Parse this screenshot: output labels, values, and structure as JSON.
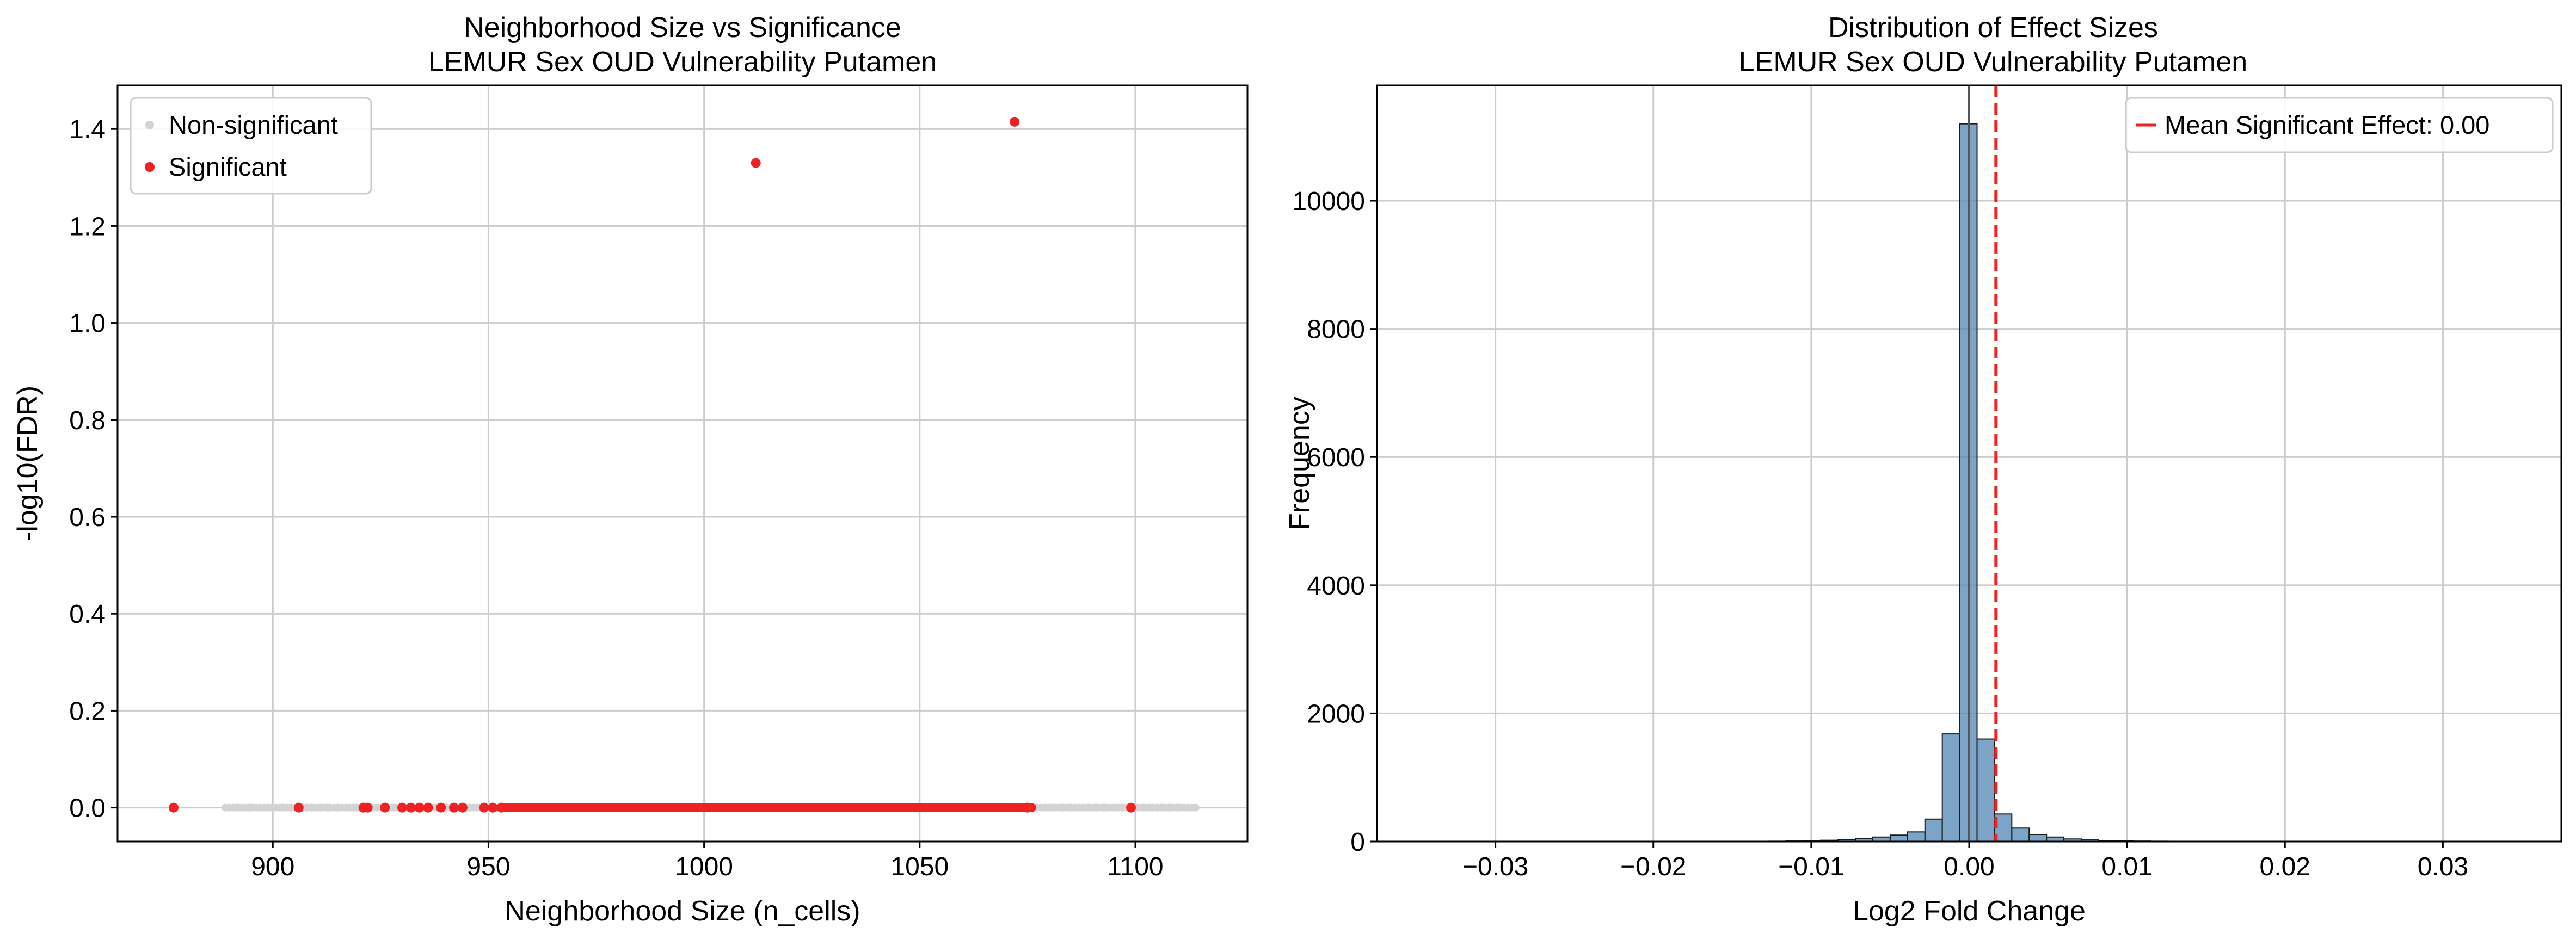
{
  "chart_data": [
    {
      "type": "scatter",
      "title": "Neighborhood Size vs Significance",
      "subtitle": "LEMUR Sex OUD Vulnerability Putamen",
      "xlabel": "Neighborhood Size (n_cells)",
      "ylabel": "-log10(FDR)",
      "xlim": [
        864,
        1126
      ],
      "ylim": [
        -0.07,
        1.49
      ],
      "xticks": [
        900,
        950,
        1000,
        1050,
        1100
      ],
      "yticks": [
        0.0,
        0.2,
        0.4,
        0.6,
        0.8,
        1.0,
        1.2,
        1.4
      ],
      "grid": true,
      "legend_position": "upper-left",
      "series": [
        {
          "name": "Non-significant",
          "color": "#d3d3d3",
          "note_y": 0.0,
          "x_range": [
            889,
            1114
          ],
          "x": [
            889,
            892,
            895,
            898,
            900,
            902,
            904,
            907,
            909,
            911,
            913,
            915,
            917,
            919,
            920,
            923,
            926,
            928,
            931,
            933,
            935,
            938,
            940,
            943,
            945,
            948,
            1077,
            1079,
            1081,
            1083,
            1085,
            1087,
            1089,
            1091,
            1093,
            1095,
            1097,
            1100,
            1102,
            1104,
            1106,
            1108,
            1110,
            1114
          ],
          "y": [
            0,
            0,
            0,
            0,
            0,
            0,
            0,
            0,
            0,
            0,
            0,
            0,
            0,
            0,
            0,
            0,
            0,
            0,
            0,
            0,
            0,
            0,
            0,
            0,
            0,
            0,
            0,
            0,
            0,
            0,
            0,
            0,
            0,
            0,
            0,
            0,
            0,
            0,
            0,
            0,
            0,
            0,
            0,
            0
          ]
        },
        {
          "name": "Significant",
          "color": "#ee2222",
          "x": [
            877,
            906,
            921,
            922,
            926,
            930,
            932,
            934,
            936,
            939,
            942,
            944,
            949,
            951,
            953,
            1012,
            1072,
            1075,
            1099
          ],
          "y": [
            0,
            0,
            0,
            0,
            0,
            0,
            0,
            0,
            0,
            0,
            0,
            0,
            0,
            0,
            0,
            1.33,
            1.415,
            0,
            0
          ],
          "dense_band_x": [
            953,
            1076
          ],
          "dense_band_y": 0.0
        }
      ]
    },
    {
      "type": "bar",
      "subtype": "histogram",
      "title": "Distribution of Effect Sizes",
      "subtitle": "LEMUR Sex OUD Vulnerability Putamen",
      "xlabel": "Log2 Fold Change",
      "ylabel": "Frequency",
      "xlim": [
        -0.0375,
        0.0375
      ],
      "ylim": [
        0,
        11800
      ],
      "xticks": [
        -0.03,
        -0.02,
        -0.01,
        0.0,
        0.01,
        0.02,
        0.03
      ],
      "xtick_labels": [
        "−0.03",
        "−0.02",
        "−0.01",
        "0.00",
        "0.01",
        "0.02",
        "0.03"
      ],
      "yticks": [
        0,
        2000,
        4000,
        6000,
        8000,
        10000
      ],
      "grid": true,
      "legend_position": "upper-right",
      "bar_color": "#5b8db8",
      "bin_edges": [
        -0.0138,
        -0.0127,
        -0.0116,
        -0.0105,
        -0.0094,
        -0.0083,
        -0.0072,
        -0.0061,
        -0.005,
        -0.0039,
        -0.0028,
        -0.0017,
        -0.0006,
        0.0005,
        0.0016,
        0.0027,
        0.0038,
        0.0049,
        0.006,
        0.0071,
        0.0082,
        0.0093,
        0.0104,
        0.0115,
        0.0126,
        0.0137,
        0.0148,
        0.0159,
        0.017
      ],
      "counts": [
        3,
        5,
        8,
        12,
        20,
        30,
        45,
        70,
        100,
        150,
        350,
        1680,
        11200,
        1600,
        430,
        210,
        110,
        70,
        40,
        25,
        15,
        10,
        7,
        5,
        3,
        3,
        2,
        2
      ],
      "reference_line": {
        "x": 0.0,
        "color": "#555555"
      },
      "mean_line": {
        "label": "Mean Significant Effect: 0.00",
        "x": 0.0017,
        "color": "#ee2222"
      }
    }
  ]
}
